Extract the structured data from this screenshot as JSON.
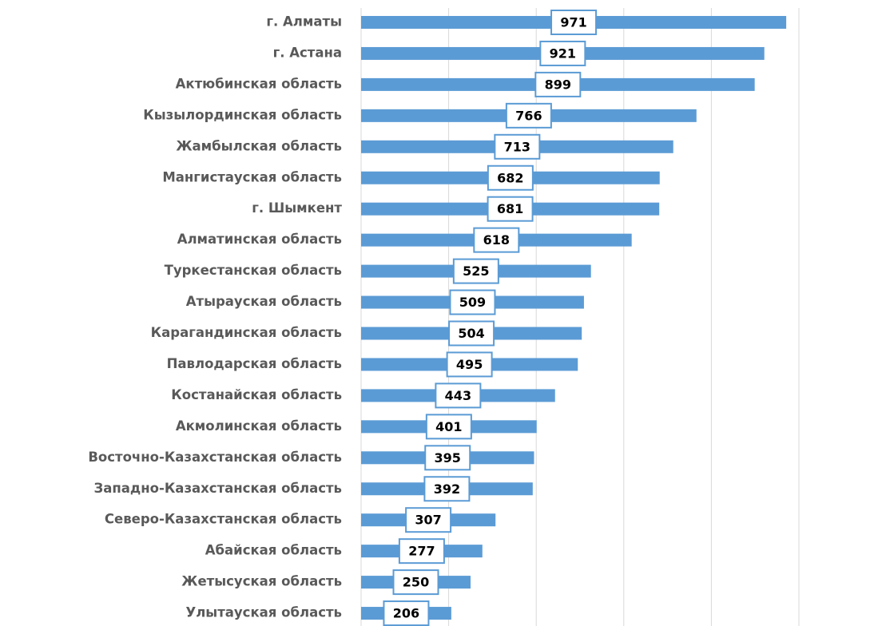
{
  "chart_data": {
    "type": "bar",
    "orientation": "horizontal",
    "categories": [
      "г. Алматы",
      "г. Астана",
      "Актюбинская область",
      "Кызылординская область",
      "Жамбылская область",
      "Мангистауская область",
      "г. Шымкент",
      "Алматинская область",
      "Туркестанская область",
      "Атырауская область",
      "Карагандинская область",
      "Павлодарская область",
      "Костанайская область",
      "Акмолинская область",
      "Восточно-Казахстанская область",
      "Западно-Казахстанская область",
      "Северо-Казахстанская область",
      "Абайская область",
      "Жетысуская область",
      "Улытауская область"
    ],
    "values": [
      971,
      921,
      899,
      766,
      713,
      682,
      681,
      618,
      525,
      509,
      504,
      495,
      443,
      401,
      395,
      392,
      307,
      277,
      250,
      206
    ],
    "color": "#5b9bd5",
    "xlim": [
      0,
      1000
    ],
    "xticks": [
      0,
      200,
      400,
      600,
      800,
      1000
    ],
    "grid": true
  }
}
